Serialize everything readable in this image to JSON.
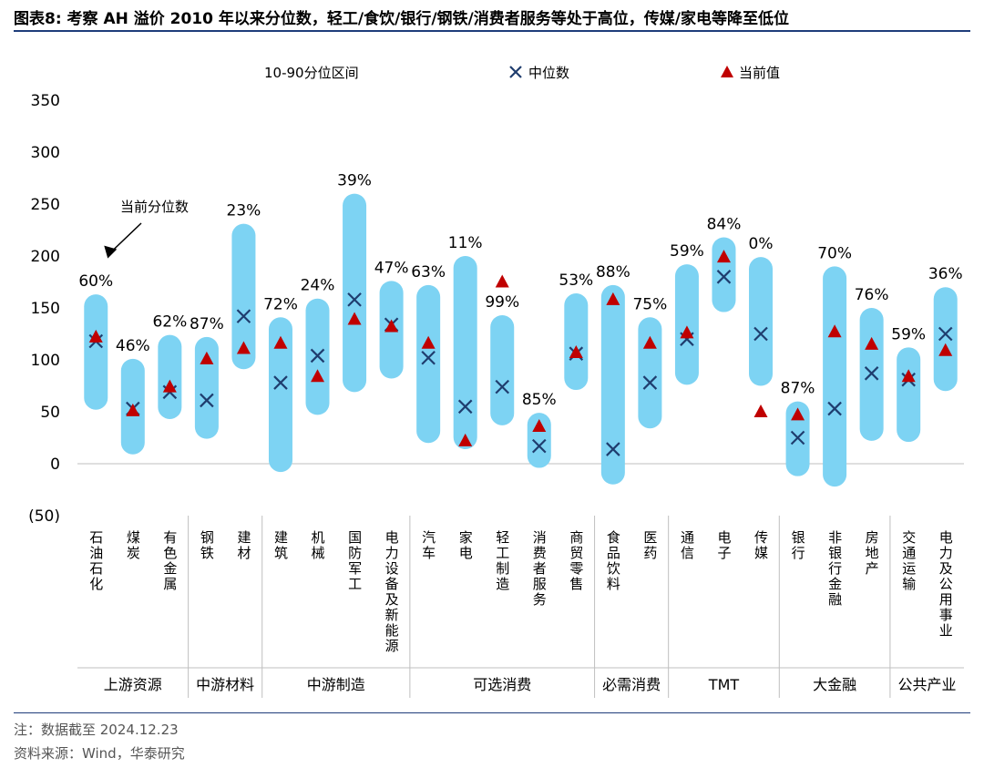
{
  "title": "图表8:  考察 AH 溢价 2010 年以来分位数，轻工/食饮/银行/钢铁/消费者服务等处于高位，传媒/家电等降至低位",
  "note": "注：数据截至 2024.12.23",
  "source": "资料来源：Wind，华泰研究",
  "chart_data": {
    "type": "range-dot",
    "legend": {
      "range": "10-90分位区间",
      "median": "中位数",
      "current": "当前值",
      "position": "top"
    },
    "annotation": "当前分位数",
    "ylim": [
      -50,
      350
    ],
    "yticks": [
      -50,
      0,
      50,
      100,
      150,
      200,
      250,
      300,
      350
    ],
    "ytick_labels": [
      "(50)",
      "0",
      "50",
      "100",
      "150",
      "200",
      "250",
      "300",
      "350"
    ],
    "colors": {
      "range": "#7dd3f3",
      "median": "#1f3d6e",
      "current": "#c00000"
    },
    "categories": [
      {
        "name": "石油石化",
        "low": 52,
        "high": 163,
        "median": 118,
        "current": 122,
        "pct": "60%"
      },
      {
        "name": "煤炭",
        "low": 9,
        "high": 101,
        "median": 53,
        "current": 51,
        "pct": "46%"
      },
      {
        "name": "有色金属",
        "low": 43,
        "high": 124,
        "median": 69,
        "current": 74,
        "pct": "62%"
      },
      {
        "name": "钢铁",
        "low": 24,
        "high": 122,
        "median": 61,
        "current": 101,
        "pct": "87%"
      },
      {
        "name": "建材",
        "low": 91,
        "high": 231,
        "median": 142,
        "current": 111,
        "pct": "23%"
      },
      {
        "name": "建筑",
        "low": -8,
        "high": 141,
        "median": 78,
        "current": 116,
        "pct": "72%"
      },
      {
        "name": "机械",
        "low": 47,
        "high": 159,
        "median": 104,
        "current": 84,
        "pct": "24%"
      },
      {
        "name": "国防军工",
        "low": 69,
        "high": 260,
        "median": 158,
        "current": 139,
        "pct": "39%"
      },
      {
        "name": "电力设备及新能源",
        "low": 82,
        "high": 176,
        "median": 134,
        "current": 132,
        "pct": "47%"
      },
      {
        "name": "汽车",
        "low": 20,
        "high": 172,
        "median": 102,
        "current": 116,
        "pct": "63%"
      },
      {
        "name": "家电",
        "low": 14,
        "high": 200,
        "median": 55,
        "current": 22,
        "pct": "11%"
      },
      {
        "name": "轻工制造",
        "low": 37,
        "high": 143,
        "median": 74,
        "current": 175,
        "pct": "99%"
      },
      {
        "name": "消费者服务",
        "low": -4,
        "high": 49,
        "median": 17,
        "current": 36,
        "pct": "85%"
      },
      {
        "name": "商贸零售",
        "low": 71,
        "high": 164,
        "median": 106,
        "current": 107,
        "pct": "53%"
      },
      {
        "name": "食品饮料",
        "low": -20,
        "high": 172,
        "median": 14,
        "current": 158,
        "pct": "88%"
      },
      {
        "name": "医药",
        "low": 34,
        "high": 141,
        "median": 78,
        "current": 116,
        "pct": "75%"
      },
      {
        "name": "通信",
        "low": 76,
        "high": 192,
        "median": 120,
        "current": 126,
        "pct": "59%"
      },
      {
        "name": "电子",
        "low": 146,
        "high": 218,
        "median": 180,
        "current": 199,
        "pct": "84%"
      },
      {
        "name": "传媒",
        "low": 75,
        "high": 199,
        "median": 125,
        "current": 50,
        "pct": "0%"
      },
      {
        "name": "银行",
        "low": -12,
        "high": 60,
        "median": 25,
        "current": 47,
        "pct": "87%"
      },
      {
        "name": "非银行金融",
        "low": -22,
        "high": 190,
        "median": 53,
        "current": 127,
        "pct": "70%"
      },
      {
        "name": "房地产",
        "low": 22,
        "high": 150,
        "median": 87,
        "current": 115,
        "pct": "76%"
      },
      {
        "name": "交通运输",
        "low": 21,
        "high": 112,
        "median": 81,
        "current": 84,
        "pct": "59%"
      },
      {
        "name": "电力及公用事业",
        "low": 70,
        "high": 170,
        "median": 125,
        "current": 109,
        "pct": "36%"
      }
    ],
    "groups": [
      {
        "name": "上游资源",
        "start": 0,
        "end": 2
      },
      {
        "name": "中游材料",
        "start": 3,
        "end": 4
      },
      {
        "name": "中游制造",
        "start": 5,
        "end": 8
      },
      {
        "name": "可选消费",
        "start": 9,
        "end": 13
      },
      {
        "name": "必需消费",
        "start": 14,
        "end": 15
      },
      {
        "name": "TMT",
        "start": 16,
        "end": 18
      },
      {
        "name": "大金融",
        "start": 19,
        "end": 21
      },
      {
        "name": "公共产业",
        "start": 22,
        "end": 23
      }
    ]
  }
}
